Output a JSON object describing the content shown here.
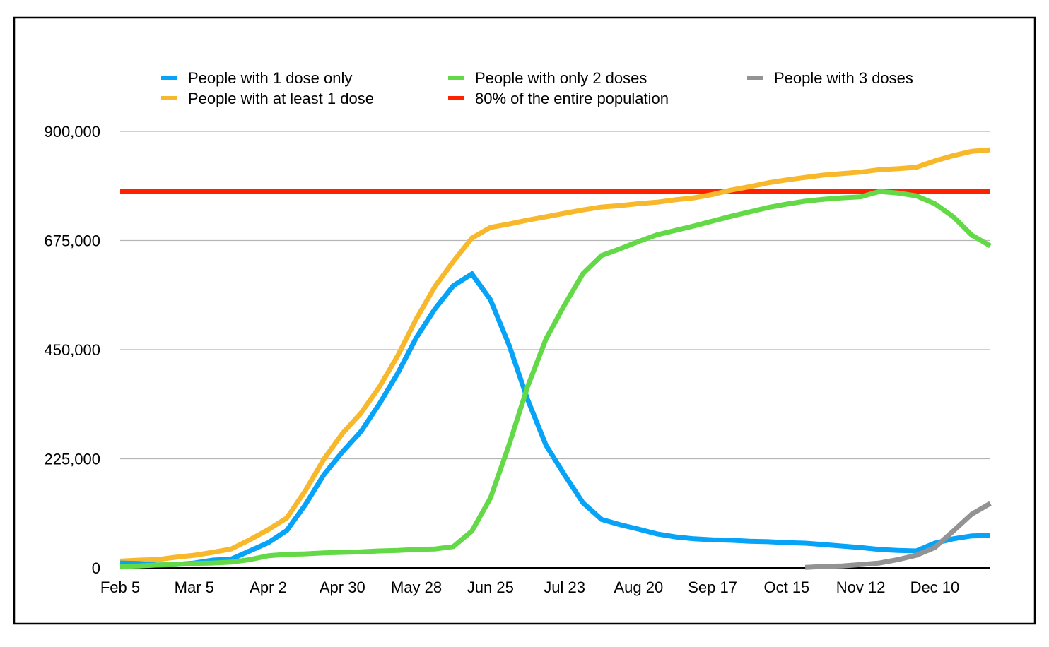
{
  "chart_data": {
    "type": "line",
    "title": "",
    "xlabel": "",
    "ylabel": "",
    "ylim": [
      0,
      900000
    ],
    "y_ticks": [
      0,
      225000,
      450000,
      675000,
      900000
    ],
    "y_tick_labels": [
      "0",
      "225,000",
      "450,000",
      "675,000",
      "900,000"
    ],
    "x_tick_labels": [
      "Feb 5",
      "Mar 5",
      "Apr 2",
      "Apr 30",
      "May 28",
      "Jun 25",
      "Jul 23",
      "Aug 20",
      "Sep 17",
      "Oct 15",
      "Nov 12",
      "Dec 10"
    ],
    "grid": true,
    "legend_position": "top",
    "x": [
      "Feb 5",
      "Feb 12",
      "Feb 19",
      "Feb 26",
      "Mar 5",
      "Mar 12",
      "Mar 19",
      "Mar 26",
      "Apr 2",
      "Apr 9",
      "Apr 16",
      "Apr 23",
      "Apr 30",
      "May 7",
      "May 14",
      "May 21",
      "May 28",
      "Jun 4",
      "Jun 11",
      "Jun 18",
      "Jun 25",
      "Jul 2",
      "Jul 9",
      "Jul 16",
      "Jul 23",
      "Jul 30",
      "Aug 6",
      "Aug 13",
      "Aug 20",
      "Aug 27",
      "Sep 3",
      "Sep 10",
      "Sep 17",
      "Sep 24",
      "Oct 1",
      "Oct 8",
      "Oct 15",
      "Oct 22",
      "Oct 29",
      "Nov 5",
      "Nov 12",
      "Nov 19",
      "Nov 26",
      "Dec 3",
      "Dec 10",
      "Dec 17",
      "Dec 24",
      "Dec 31"
    ],
    "series": [
      {
        "name": "People with 1 dose only",
        "color": "#06a3f7",
        "values": [
          10000,
          9000,
          6000,
          7000,
          10000,
          16000,
          18000,
          35000,
          52000,
          77000,
          130000,
          192000,
          239000,
          281000,
          338000,
          402000,
          475000,
          534000,
          582000,
          606000,
          553000,
          460000,
          348000,
          253000,
          192000,
          134000,
          100000,
          89000,
          80000,
          70000,
          64000,
          60000,
          58000,
          57000,
          55000,
          54000,
          52000,
          51000,
          48000,
          45000,
          42000,
          38000,
          36000,
          35000,
          51000,
          60000,
          66000,
          67000
        ]
      },
      {
        "name": "People with only 2 doses",
        "color": "#63d948",
        "values": [
          3000,
          4000,
          6000,
          7000,
          9000,
          10000,
          12000,
          17000,
          25000,
          28000,
          29000,
          31000,
          32000,
          33000,
          35000,
          36000,
          38000,
          39000,
          44000,
          76000,
          144000,
          253000,
          373000,
          472000,
          542000,
          607000,
          644000,
          658000,
          673000,
          687000,
          696000,
          705000,
          715000,
          725000,
          734000,
          743000,
          750000,
          756000,
          760000,
          763000,
          765000,
          776000,
          773000,
          767000,
          751000,
          724000,
          686000,
          664000
        ]
      },
      {
        "name": "People with 3 doses",
        "color": "#939393",
        "values": [
          null,
          null,
          null,
          null,
          null,
          null,
          null,
          null,
          null,
          null,
          null,
          null,
          null,
          null,
          null,
          null,
          null,
          null,
          null,
          null,
          null,
          null,
          null,
          null,
          null,
          null,
          null,
          null,
          null,
          null,
          null,
          null,
          null,
          null,
          null,
          null,
          null,
          1000,
          3000,
          4000,
          7000,
          10000,
          17000,
          26000,
          42000,
          76000,
          111000,
          133000
        ]
      },
      {
        "name": "People with at least 1 dose",
        "color": "#f8b82b",
        "values": [
          14000,
          16000,
          17000,
          22000,
          26000,
          32000,
          39000,
          58000,
          79000,
          103000,
          159000,
          224000,
          277000,
          319000,
          373000,
          438000,
          514000,
          580000,
          632000,
          680000,
          702000,
          709000,
          717000,
          724000,
          731000,
          738000,
          744000,
          747000,
          751000,
          754000,
          759000,
          763000,
          770000,
          779000,
          786000,
          794000,
          800000,
          805000,
          810000,
          813000,
          816000,
          821000,
          823000,
          826000,
          839000,
          850000,
          859000,
          862000
        ]
      },
      {
        "name": "80% of the entire population",
        "color": "#ff2200",
        "values": [
          777000,
          777000,
          777000,
          777000,
          777000,
          777000,
          777000,
          777000,
          777000,
          777000,
          777000,
          777000,
          777000,
          777000,
          777000,
          777000,
          777000,
          777000,
          777000,
          777000,
          777000,
          777000,
          777000,
          777000,
          777000,
          777000,
          777000,
          777000,
          777000,
          777000,
          777000,
          777000,
          777000,
          777000,
          777000,
          777000,
          777000,
          777000,
          777000,
          777000,
          777000,
          777000,
          777000,
          777000,
          777000,
          777000,
          777000,
          777000
        ]
      }
    ]
  }
}
